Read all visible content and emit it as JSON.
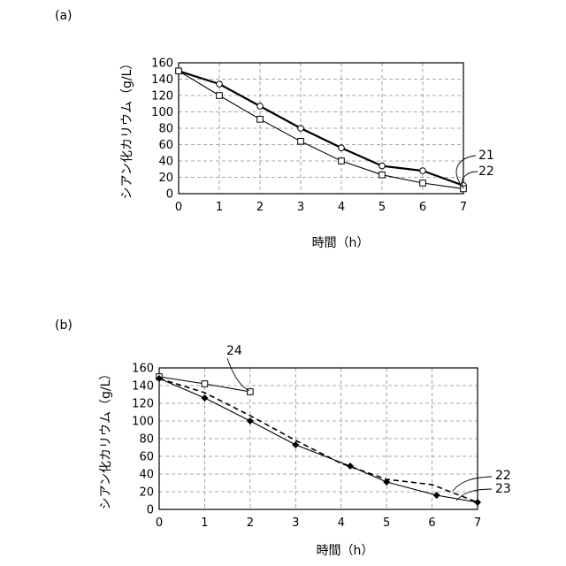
{
  "chart_data": [
    {
      "type": "line",
      "panel_label": "(a)",
      "xlabel": "時間（h）",
      "ylabel": "シアン化カリウム（g/L）",
      "xlim": [
        0,
        7
      ],
      "ylim": [
        0,
        160
      ],
      "x_ticks": [
        0,
        1,
        2,
        3,
        4,
        5,
        6,
        7
      ],
      "y_ticks": [
        0,
        20,
        40,
        60,
        80,
        100,
        120,
        140,
        160
      ],
      "grid": true,
      "series": [
        {
          "name": "21",
          "marker": "circle",
          "line_style": "solid-thick",
          "x": [
            0,
            1,
            2,
            3,
            4,
            5,
            6,
            7
          ],
          "y": [
            150,
            134,
            107,
            80,
            56,
            34,
            28,
            10
          ]
        },
        {
          "name": "22",
          "marker": "square",
          "line_style": "solid",
          "x": [
            0,
            1,
            2,
            3,
            4,
            5,
            6,
            7
          ],
          "y": [
            150,
            120,
            91,
            64,
            40,
            23,
            13,
            6
          ]
        }
      ]
    },
    {
      "type": "line",
      "panel_label": "(b)",
      "xlabel": "時間（h）",
      "ylabel": "シアン化カリウム（g/L）",
      "xlim": [
        0,
        7
      ],
      "ylim": [
        0,
        160
      ],
      "x_ticks": [
        0,
        1,
        2,
        3,
        4,
        5,
        6,
        7
      ],
      "y_ticks": [
        0,
        20,
        40,
        60,
        80,
        100,
        120,
        140,
        160
      ],
      "grid": true,
      "series": [
        {
          "name": "24",
          "marker": "square",
          "line_style": "solid",
          "x": [
            0,
            1,
            2
          ],
          "y": [
            150,
            142,
            133
          ]
        },
        {
          "name": "22",
          "marker": "none",
          "line_style": "dashed",
          "x": [
            0,
            1,
            2,
            3,
            4,
            5,
            6,
            7
          ],
          "y": [
            148,
            132,
            106,
            78,
            52,
            34,
            28,
            8
          ]
        },
        {
          "name": "23",
          "marker": "diamond",
          "line_style": "solid",
          "x": [
            0,
            1,
            2,
            3,
            4.2,
            5,
            6.1,
            7
          ],
          "y": [
            148,
            126,
            100,
            73,
            49,
            31,
            16,
            8
          ]
        }
      ]
    }
  ]
}
